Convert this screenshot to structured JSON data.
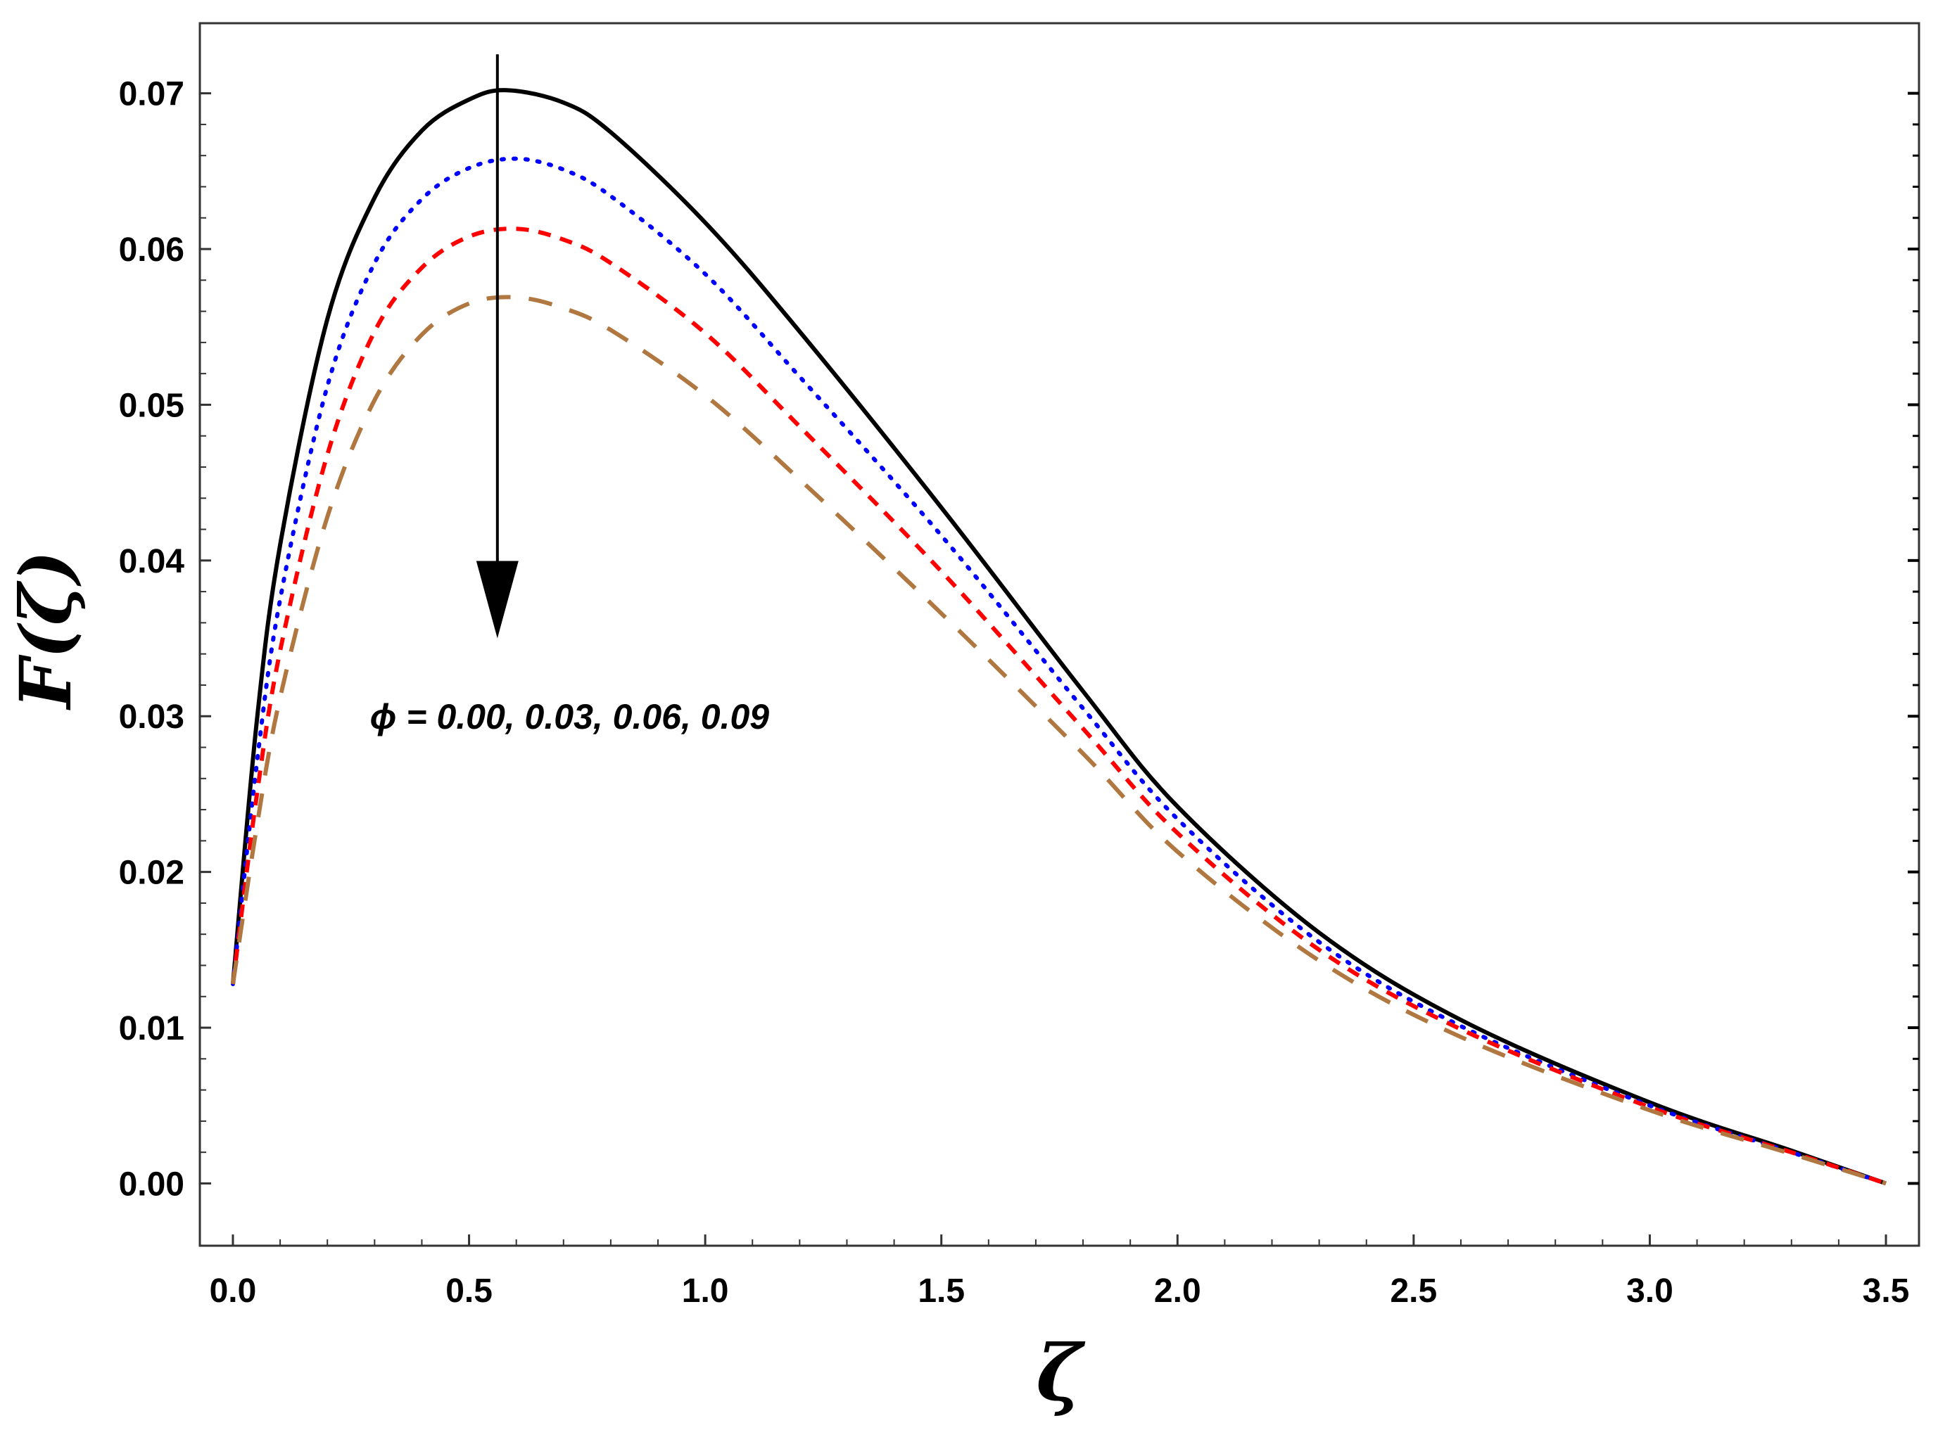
{
  "chart_data": {
    "type": "line",
    "xlabel": "ζ",
    "ylabel": "F(ζ)",
    "xlim": [
      -0.07,
      3.57
    ],
    "ylim": [
      -0.004,
      0.0745
    ],
    "xticks": [
      "0.0",
      "0.5",
      "1.0",
      "1.5",
      "2.0",
      "2.5",
      "3.0",
      "3.5"
    ],
    "yticks": [
      "0.00",
      "0.01",
      "0.02",
      "0.03",
      "0.04",
      "0.05",
      "0.06",
      "0.07"
    ],
    "grid": false,
    "annotation": {
      "text": "ϕ = 0.00, 0.03, 0.06, 0.09",
      "arrow": {
        "x": 0.56,
        "y_from": 0.0725,
        "y_to": 0.035
      }
    },
    "series": [
      {
        "style": "solid",
        "color": "#000000",
        "x": [
          0.0,
          0.05,
          0.1,
          0.2,
          0.3,
          0.4,
          0.5,
          0.58,
          0.7,
          0.8,
          1.0,
          1.2,
          1.5,
          1.8,
          2.0,
          2.3,
          2.6,
          3.0,
          3.3,
          3.5
        ],
        "y": [
          0.0128,
          0.0295,
          0.041,
          0.0555,
          0.0633,
          0.0676,
          0.0696,
          0.0702,
          0.0694,
          0.0675,
          0.0617,
          0.0547,
          0.0434,
          0.0316,
          0.0242,
          0.0161,
          0.0105,
          0.0052,
          0.0021,
          0.0
        ]
      },
      {
        "style": "dotted",
        "color": "#0000ff",
        "x": [
          0.0,
          0.05,
          0.1,
          0.2,
          0.3,
          0.4,
          0.5,
          0.6,
          0.7,
          0.8,
          1.0,
          1.2,
          1.5,
          1.8,
          2.0,
          2.3,
          2.6,
          3.0,
          3.3,
          3.5
        ],
        "y": [
          0.0128,
          0.0268,
          0.0375,
          0.0512,
          0.0591,
          0.0632,
          0.0652,
          0.0658,
          0.0651,
          0.0634,
          0.0584,
          0.0518,
          0.0416,
          0.0305,
          0.0234,
          0.0155,
          0.0101,
          0.005,
          0.002,
          0.0
        ]
      },
      {
        "style": "dashed",
        "color": "#ff0000",
        "x": [
          0.0,
          0.05,
          0.1,
          0.2,
          0.3,
          0.4,
          0.5,
          0.6,
          0.7,
          0.8,
          1.0,
          1.2,
          1.5,
          1.8,
          2.0,
          2.3,
          2.6,
          3.0,
          3.3,
          3.5
        ],
        "y": [
          0.0128,
          0.0248,
          0.0342,
          0.0468,
          0.0547,
          0.0588,
          0.0608,
          0.0613,
          0.0606,
          0.0591,
          0.0546,
          0.0486,
          0.0393,
          0.0292,
          0.0225,
          0.015,
          0.0099,
          0.0049,
          0.002,
          0.0
        ]
      },
      {
        "style": "long-dashed",
        "color": "#b07840",
        "x": [
          0.0,
          0.05,
          0.1,
          0.2,
          0.3,
          0.4,
          0.5,
          0.6,
          0.7,
          0.8,
          1.0,
          1.2,
          1.5,
          1.8,
          2.0,
          2.3,
          2.6,
          3.0,
          3.3,
          3.5
        ],
        "y": [
          0.0128,
          0.0228,
          0.0312,
          0.0428,
          0.0503,
          0.0545,
          0.0565,
          0.0569,
          0.0562,
          0.0548,
          0.0506,
          0.0452,
          0.0366,
          0.0276,
          0.0213,
          0.0143,
          0.0094,
          0.0047,
          0.0019,
          0.0
        ]
      }
    ]
  }
}
